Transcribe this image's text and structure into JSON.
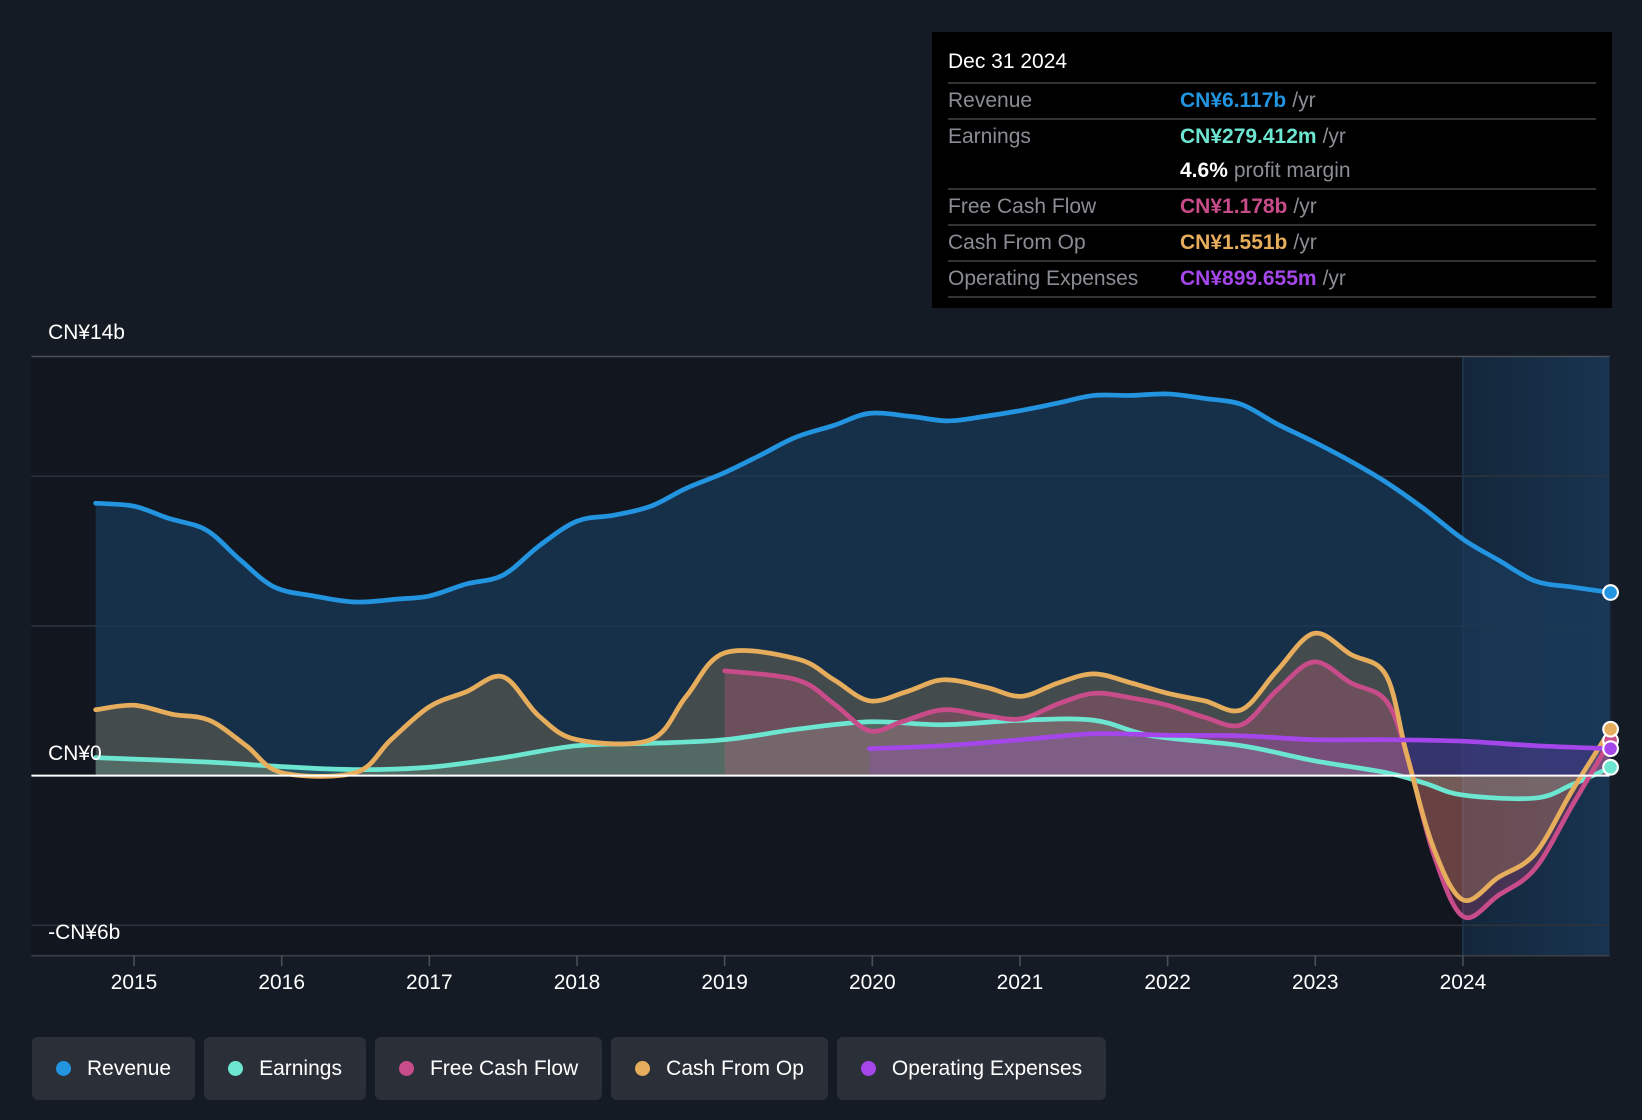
{
  "tooltip": {
    "date": "Dec 31 2024",
    "rows": [
      {
        "label": "Revenue",
        "value": "CN¥6.117b",
        "unit": "/yr",
        "color": "#2394df"
      },
      {
        "label": "Earnings",
        "value": "CN¥279.412m",
        "unit": "/yr",
        "color": "#6ce5d1"
      },
      {
        "label": "",
        "value": "4.6%",
        "unit": "profit margin",
        "color": "#ffffff"
      },
      {
        "label": "Free Cash Flow",
        "value": "CN¥1.178b",
        "unit": "/yr",
        "color": "#c94c8a"
      },
      {
        "label": "Cash From Op",
        "value": "CN¥1.551b",
        "unit": "/yr",
        "color": "#e6ad5c"
      },
      {
        "label": "Operating Expenses",
        "value": "CN¥899.655m",
        "unit": "/yr",
        "color": "#a446ea"
      }
    ]
  },
  "legend": [
    {
      "label": "Revenue",
      "color": "#2394df"
    },
    {
      "label": "Earnings",
      "color": "#6ce5d1"
    },
    {
      "label": "Free Cash Flow",
      "color": "#c94c8a"
    },
    {
      "label": "Cash From Op",
      "color": "#e6ad5c"
    },
    {
      "label": "Operating Expenses",
      "color": "#a446ea"
    }
  ],
  "chart_data": {
    "type": "area",
    "title": "",
    "xlabel": "",
    "ylabel": "",
    "unit": "CN¥ billions",
    "ylim": [
      -6,
      14
    ],
    "xlim": [
      2014.3,
      2025.0
    ],
    "y_tick_labels": [
      {
        "value": 14,
        "label": "CN¥14b"
      },
      {
        "value": 0,
        "label": "CN¥0"
      },
      {
        "value": -6,
        "label": "-CN¥6b"
      }
    ],
    "gridlines": [
      14,
      10,
      5,
      0,
      -5
    ],
    "x_ticks": [
      2015,
      2016,
      2017,
      2018,
      2019,
      2020,
      2021,
      2022,
      2023,
      2024
    ],
    "x_tick_labels": [
      "2015",
      "2016",
      "2017",
      "2018",
      "2019",
      "2020",
      "2021",
      "2022",
      "2023",
      "2024"
    ],
    "highlight_from": 2024.0,
    "series": [
      {
        "name": "Revenue",
        "color": "#2394df",
        "x": [
          2014.74,
          2015.0,
          2015.23,
          2015.49,
          2015.72,
          2015.95,
          2016.22,
          2016.5,
          2016.79,
          2017.0,
          2017.25,
          2017.5,
          2017.75,
          2018.0,
          2018.25,
          2018.5,
          2018.74,
          2018.99,
          2019.24,
          2019.48,
          2019.74,
          2019.98,
          2020.26,
          2020.51,
          2020.76,
          2021.01,
          2021.26,
          2021.5,
          2021.75,
          2022.0,
          2022.25,
          2022.5,
          2022.74,
          2022.99,
          2023.24,
          2023.48,
          2023.74,
          2024.0,
          2024.24,
          2024.49,
          2024.74,
          2025.0
        ],
        "y": [
          9.1,
          9.0,
          8.6,
          8.2,
          7.2,
          6.3,
          6.0,
          5.8,
          5.9,
          6.0,
          6.4,
          6.7,
          7.7,
          8.5,
          8.7,
          9.0,
          9.6,
          10.1,
          10.7,
          11.3,
          11.7,
          12.1,
          12.0,
          11.85,
          12.0,
          12.2,
          12.45,
          12.7,
          12.7,
          12.75,
          12.6,
          12.4,
          11.75,
          11.15,
          10.5,
          9.8,
          8.9,
          7.9,
          7.2,
          6.5,
          6.3,
          6.117
        ]
      },
      {
        "name": "Earnings",
        "color": "#6ce5d1",
        "x": [
          2014.74,
          2015.51,
          2016.0,
          2016.5,
          2017.0,
          2017.5,
          2018.0,
          2018.5,
          2019.0,
          2019.49,
          2019.98,
          2020.48,
          2021.01,
          2021.5,
          2021.89,
          2022.5,
          2022.99,
          2023.48,
          2023.74,
          2024.0,
          2024.49,
          2024.74,
          2025.0
        ],
        "y": [
          0.6,
          0.45,
          0.3,
          0.2,
          0.28,
          0.6,
          1.0,
          1.08,
          1.2,
          1.55,
          1.8,
          1.7,
          1.85,
          1.85,
          1.33,
          1.0,
          0.5,
          0.1,
          -0.25,
          -0.65,
          -0.75,
          -0.3,
          0.279
        ]
      },
      {
        "name": "Free Cash Flow",
        "color": "#c94c8a",
        "x": [
          2019.0,
          2019.49,
          2019.74,
          2019.98,
          2020.2,
          2020.48,
          2020.77,
          2021.01,
          2021.26,
          2021.5,
          2021.75,
          2022.0,
          2022.25,
          2022.5,
          2022.74,
          2022.99,
          2023.24,
          2023.48,
          2023.62,
          2023.8,
          2024.0,
          2024.24,
          2024.49,
          2024.74,
          2025.0
        ],
        "y": [
          3.5,
          3.2,
          2.4,
          1.5,
          1.8,
          2.2,
          2.0,
          1.9,
          2.4,
          2.75,
          2.6,
          2.35,
          1.95,
          1.7,
          2.85,
          3.8,
          3.1,
          2.5,
          0.7,
          -2.6,
          -4.7,
          -4.0,
          -3.1,
          -1.0,
          1.178
        ]
      },
      {
        "name": "Cash From Op",
        "color": "#e6ad5c",
        "x": [
          2014.74,
          2015.0,
          2015.26,
          2015.51,
          2015.76,
          2016.0,
          2016.5,
          2016.74,
          2017.0,
          2017.25,
          2017.5,
          2017.74,
          2018.0,
          2018.5,
          2018.74,
          2019.0,
          2019.49,
          2019.74,
          2019.98,
          2020.23,
          2020.48,
          2020.77,
          2021.01,
          2021.26,
          2021.5,
          2021.75,
          2022.0,
          2022.25,
          2022.5,
          2022.74,
          2022.99,
          2023.24,
          2023.48,
          2023.62,
          2023.8,
          2024.0,
          2024.24,
          2024.49,
          2024.74,
          2025.0
        ],
        "y": [
          2.2,
          2.35,
          2.05,
          1.85,
          1.0,
          0.1,
          0.1,
          1.2,
          2.3,
          2.8,
          3.3,
          2.0,
          1.2,
          1.2,
          2.65,
          4.1,
          3.9,
          3.2,
          2.5,
          2.8,
          3.2,
          2.95,
          2.65,
          3.1,
          3.4,
          3.1,
          2.75,
          2.5,
          2.2,
          3.5,
          4.75,
          4.05,
          3.35,
          0.7,
          -2.4,
          -4.15,
          -3.4,
          -2.6,
          -0.5,
          1.551
        ]
      },
      {
        "name": "Operating Expenses",
        "color": "#a446ea",
        "x": [
          2019.98,
          2020.48,
          2021.01,
          2021.5,
          2022.0,
          2022.5,
          2022.99,
          2023.48,
          2024.0,
          2024.49,
          2025.0
        ],
        "y": [
          0.9,
          1.0,
          1.2,
          1.4,
          1.35,
          1.33,
          1.2,
          1.2,
          1.15,
          1.0,
          0.9
        ]
      }
    ]
  }
}
